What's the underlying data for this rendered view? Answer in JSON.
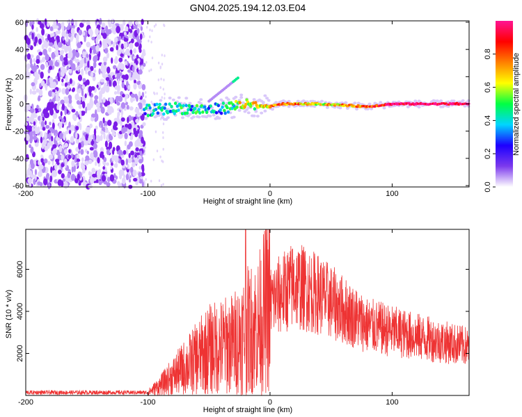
{
  "title": "GN04.2025.194.12.03.E04",
  "chart_data": [
    {
      "type": "heatmap",
      "xlabel": "Height of straight line (km)",
      "ylabel": "Frequency (Hz)",
      "xlim": [
        -200,
        163
      ],
      "ylim": [
        -61,
        61
      ],
      "xticks": [
        -200,
        -100,
        0,
        100
      ],
      "yticks": [
        -60,
        -40,
        -20,
        0,
        20,
        40,
        60
      ],
      "colorbar": {
        "label": "Normalized spectral amplitude",
        "range": [
          0,
          1
        ],
        "ticks": [
          0.0,
          0.2,
          0.4,
          0.6,
          0.8
        ],
        "colormap": [
          "#ffffff",
          "#7c3aed",
          "#1d00ff",
          "#00d5ff",
          "#00ff44",
          "#ffff00",
          "#ff8000",
          "#ff0000",
          "#ff1493"
        ]
      },
      "noise_region_x": [
        -200,
        -103
      ],
      "ridge": [
        {
          "x": -103,
          "y": -5,
          "amp": 0.35
        },
        {
          "x": -90,
          "y": -4,
          "amp": 0.4
        },
        {
          "x": -75,
          "y": -3,
          "amp": 0.4
        },
        {
          "x": -60,
          "y": -4,
          "amp": 0.4
        },
        {
          "x": -45,
          "y": -4,
          "amp": 0.35
        },
        {
          "x": -30,
          "y": -2,
          "amp": 0.4
        },
        {
          "x": -25,
          "y": 0,
          "amp": 0.65
        },
        {
          "x": -12,
          "y": -2,
          "amp": 0.6
        },
        {
          "x": 0,
          "y": -2,
          "amp": 0.7
        },
        {
          "x": 10,
          "y": 0,
          "amp": 0.8
        },
        {
          "x": 40,
          "y": 0,
          "amp": 0.65
        },
        {
          "x": 80,
          "y": -2,
          "amp": 0.75
        },
        {
          "x": 100,
          "y": 0,
          "amp": 0.95
        },
        {
          "x": 163,
          "y": 0,
          "amp": 1.0
        }
      ]
    },
    {
      "type": "line",
      "xlabel": "Height of straight line (km)",
      "ylabel": "SNR (10 * v/v)",
      "xlim": [
        -200,
        163
      ],
      "ylim": [
        0,
        7900
      ],
      "xticks": [
        -200,
        -100,
        0,
        100
      ],
      "yticks": [
        2000,
        4000,
        6000
      ],
      "color": "#ee3333",
      "envelope": [
        {
          "x": -200,
          "y": 150
        },
        {
          "x": -100,
          "y": 150
        },
        {
          "x": -90,
          "y": 500
        },
        {
          "x": -70,
          "y": 1400
        },
        {
          "x": -50,
          "y": 2300
        },
        {
          "x": -30,
          "y": 2600
        },
        {
          "x": -20,
          "y": 3200
        },
        {
          "x": -10,
          "y": 3500
        },
        {
          "x": 0,
          "y": 4800
        },
        {
          "x": 20,
          "y": 5700
        },
        {
          "x": 40,
          "y": 5200
        },
        {
          "x": 60,
          "y": 4400
        },
        {
          "x": 80,
          "y": 3600
        },
        {
          "x": 100,
          "y": 3300
        },
        {
          "x": 130,
          "y": 2900
        },
        {
          "x": 163,
          "y": 2500
        }
      ],
      "peak": {
        "x": -20,
        "y": 7900
      }
    }
  ]
}
